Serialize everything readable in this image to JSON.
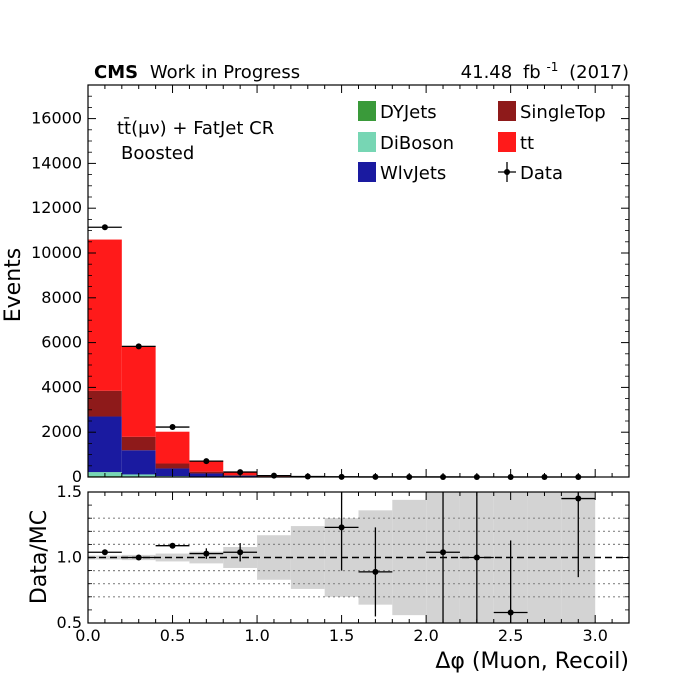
{
  "header": {
    "experiment": "CMS",
    "status": "Work in Progress",
    "luminosity_value": "41.48",
    "luminosity_unit": "fb",
    "luminosity_exp": "-1",
    "year": "(2017)"
  },
  "annotations": {
    "region_line1_ttbar": "tt̄(μν) + FatJet CR",
    "region_line2": "Boosted"
  },
  "colors": {
    "DYJets": "#3a9a3a",
    "DiBoson": "#77d6b4",
    "WlvJets": "#1a1aa0",
    "SingleTop": "#8e1a1a",
    "tt": "#ff1a1a",
    "Data": "#000000",
    "uncertainty_band": "#d3d3d3"
  },
  "chart_data": [
    {
      "type": "bar",
      "stacked": true,
      "xlabel": "Δφ (Muon, Recoil)",
      "ylabel": "Events",
      "xlim": [
        0,
        3.2
      ],
      "ylim": [
        0,
        17500
      ],
      "bin_edges": [
        0.0,
        0.2,
        0.4,
        0.6,
        0.8,
        1.0,
        1.2,
        1.4,
        1.6,
        1.8,
        2.0,
        2.2,
        2.4,
        2.6,
        2.8,
        3.0,
        3.2
      ],
      "series": [
        {
          "name": "DYJets",
          "values": [
            40,
            25,
            12,
            6,
            3,
            1.5,
            1,
            0.5,
            0.3,
            0.2,
            0.1,
            0.1,
            0.1,
            0.05,
            0.05,
            0
          ]
        },
        {
          "name": "DiBoson",
          "values": [
            180,
            90,
            30,
            12,
            4,
            2,
            1,
            0.5,
            0.3,
            0.2,
            0.1,
            0.1,
            0.1,
            0.05,
            0.05,
            0
          ]
        },
        {
          "name": "WlvJets",
          "values": [
            2480,
            1080,
            340,
            140,
            50,
            15,
            6,
            3,
            2,
            1,
            1,
            0.5,
            0.5,
            0.3,
            0.2,
            0
          ]
        },
        {
          "name": "SingleTop",
          "values": [
            1150,
            600,
            220,
            80,
            30,
            10,
            4,
            2,
            1,
            0.5,
            0.5,
            0.3,
            0.2,
            0.2,
            0.1,
            0
          ]
        },
        {
          "name": "tt",
          "values": [
            6750,
            4055,
            1420,
            470,
            123,
            33,
            12,
            4,
            2.4,
            1.1,
            0.3,
            0.5,
            0.1,
            0.2,
            0.1,
            0
          ]
        }
      ],
      "data": {
        "name": "Data",
        "x": [
          0.1,
          0.3,
          0.5,
          0.7,
          0.9,
          1.1,
          1.3,
          1.5,
          1.7,
          1.9,
          2.1,
          2.3,
          2.5,
          2.7,
          2.9
        ],
        "y": [
          11150,
          5830,
          2230,
          710,
          220,
          60,
          22,
          8,
          3,
          2,
          2,
          1,
          1,
          1,
          1
        ]
      },
      "legend": [
        "DYJets",
        "SingleTop",
        "DiBoson",
        "tt",
        "WlvJets",
        "Data"
      ],
      "legend_location": "upper-right",
      "y_ticks": [
        0,
        2000,
        4000,
        6000,
        8000,
        10000,
        12000,
        14000,
        16000
      ]
    },
    {
      "type": "scatter",
      "ylabel": "Data/MC",
      "xlim": [
        0,
        3.2
      ],
      "ylim": [
        0.5,
        1.5
      ],
      "x_ticks": [
        0.0,
        0.5,
        1.0,
        1.5,
        2.0,
        2.5,
        3.0
      ],
      "y_ticks": [
        0.5,
        1.0,
        1.5
      ],
      "reference_line": 1.0,
      "dotted_lines": [
        0.7,
        0.8,
        0.9,
        1.1,
        1.2,
        1.3
      ],
      "uncertainty_band": {
        "bin_edges": [
          0.0,
          0.2,
          0.4,
          0.6,
          0.8,
          1.0,
          1.2,
          1.4,
          1.6,
          1.8,
          2.0,
          2.2,
          2.4,
          2.6,
          2.8,
          3.0
        ],
        "half_width": [
          0.015,
          0.02,
          0.03,
          0.045,
          0.08,
          0.17,
          0.24,
          0.3,
          0.36,
          0.44,
          0.5,
          0.5,
          0.5,
          0.5,
          0.5
        ]
      },
      "points": [
        {
          "x": 0.1,
          "y": 1.04,
          "err": 0.01
        },
        {
          "x": 0.3,
          "y": 1.0,
          "err": 0.015
        },
        {
          "x": 0.5,
          "y": 1.09,
          "err": 0.02
        },
        {
          "x": 0.7,
          "y": 1.03,
          "err": 0.04
        },
        {
          "x": 0.9,
          "y": 1.04,
          "err": 0.07
        },
        {
          "x": 1.5,
          "y": 1.23,
          "err": 0.33
        },
        {
          "x": 1.7,
          "y": 0.89,
          "err": 0.34
        },
        {
          "x": 2.1,
          "y": 1.04,
          "err": 0.55
        },
        {
          "x": 2.3,
          "y": 1.0,
          "err": 0.55
        },
        {
          "x": 2.5,
          "y": 0.58,
          "err": 0.55
        },
        {
          "x": 2.9,
          "y": 1.45,
          "err": 0.6
        }
      ]
    }
  ]
}
